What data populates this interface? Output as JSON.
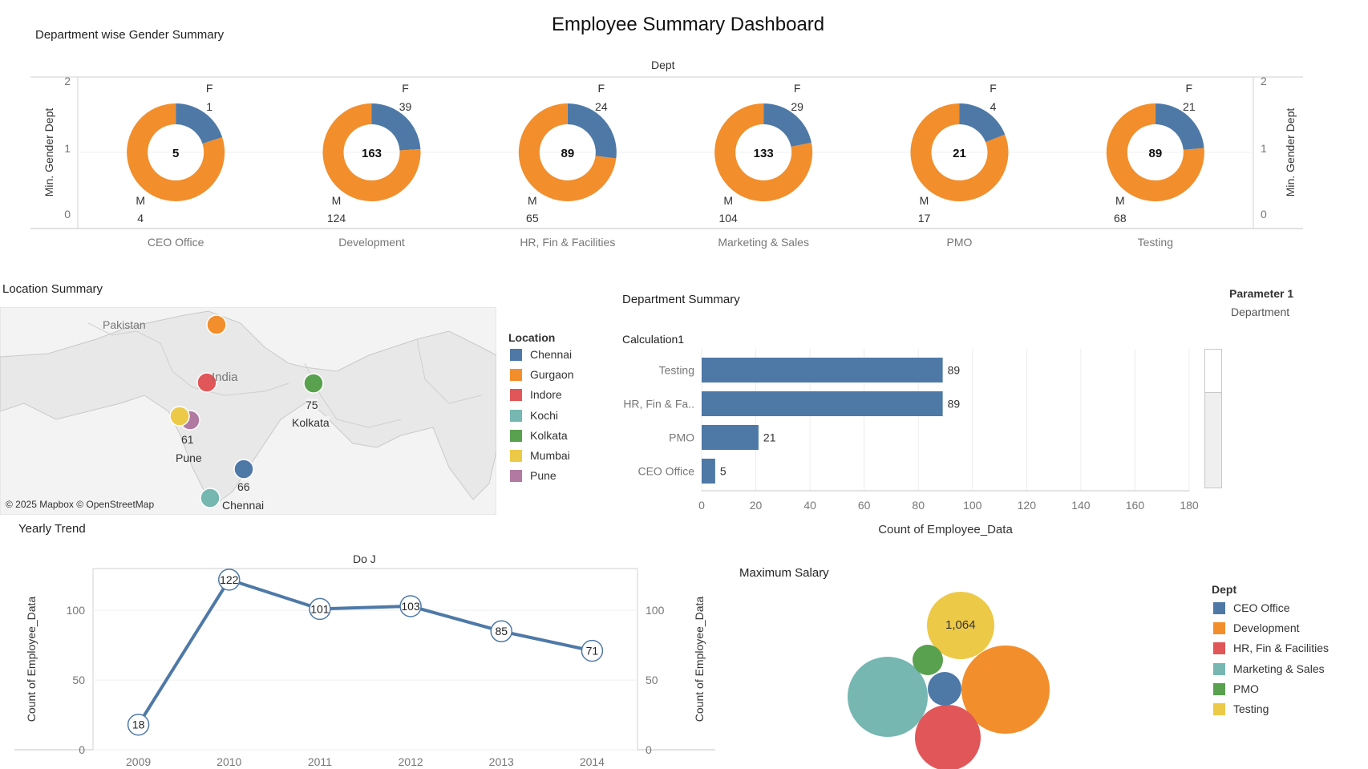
{
  "dashboard": {
    "title": "Employee Summary Dashboard"
  },
  "gender_summary": {
    "title": "Department wise Gender Summary",
    "top_label": "Dept",
    "y_label": "Min. Gender Dept",
    "y_ticks": [
      "0",
      "1",
      "2"
    ],
    "f_label": "F",
    "m_label": "M",
    "colors": {
      "F": "#4e79a7",
      "M": "#f28e2b"
    },
    "depts": [
      {
        "name": "CEO Office",
        "total": "5",
        "F": "1",
        "M": "4",
        "f": 1,
        "m": 4
      },
      {
        "name": "Development",
        "total": "163",
        "F": "39",
        "M": "124",
        "f": 39,
        "m": 124
      },
      {
        "name": "HR, Fin & Facilities",
        "total": "89",
        "F": "24",
        "M": "65",
        "f": 24,
        "m": 65
      },
      {
        "name": "Marketing & Sales",
        "total": "133",
        "F": "29",
        "M": "104",
        "f": 29,
        "m": 104
      },
      {
        "name": "PMO",
        "total": "21",
        "F": "4",
        "M": "17",
        "f": 4,
        "m": 17
      },
      {
        "name": "Testing",
        "total": "89",
        "F": "21",
        "M": "68",
        "f": 21,
        "m": 68
      }
    ]
  },
  "location": {
    "title": "Location Summary",
    "legend_title": "Location",
    "legend": [
      {
        "name": "Chennai",
        "color": "#4e79a7"
      },
      {
        "name": "Gurgaon",
        "color": "#f28e2b"
      },
      {
        "name": "Indore",
        "color": "#e15759"
      },
      {
        "name": "Kochi",
        "color": "#76b7b2"
      },
      {
        "name": "Kolkata",
        "color": "#59a14f"
      },
      {
        "name": "Mumbai",
        "color": "#edc948"
      },
      {
        "name": "Pune",
        "color": "#b07aa1"
      }
    ],
    "map_labels": {
      "pakistan": "Pakistan",
      "india": "India"
    },
    "city_labels": [
      {
        "value": "75",
        "name": "Kolkata"
      },
      {
        "value": "61",
        "name": "Pune"
      },
      {
        "value": "66",
        "name": "Chennai"
      }
    ],
    "attribution": "© 2025 Mapbox © OpenStreetMap"
  },
  "department_summary": {
    "title": "Department Summary",
    "parameter_label": "Parameter 1",
    "parameter_value": "Department",
    "calc_label": "Calculation1"
  },
  "yearly": {
    "title": "Yearly Trend",
    "top_label": "Do J"
  },
  "salary": {
    "title": "Maximum Salary",
    "legend_title": "Dept",
    "bubble_label": "1,064"
  },
  "chart_data": [
    {
      "type": "bar",
      "categories": [
        "Testing",
        "HR, Fin & Fa..",
        "PMO",
        "CEO Office"
      ],
      "values": [
        89,
        89,
        21,
        5
      ],
      "xlabel": "Count of Employee_Data",
      "xlim": [
        0,
        180
      ],
      "xticks": [
        0,
        20,
        40,
        60,
        80,
        100,
        120,
        140,
        160,
        180
      ],
      "color": "#4e79a7"
    },
    {
      "type": "line",
      "x": [
        "2009",
        "2010",
        "2011",
        "2012",
        "2013",
        "2014"
      ],
      "values": [
        18,
        122,
        101,
        103,
        85,
        71
      ],
      "ylabel": "Count of Employee_Data",
      "ylim": [
        0,
        130
      ],
      "yticks": [
        0,
        50,
        100
      ],
      "color": "#4e79a7"
    },
    {
      "type": "bubble",
      "categories": [
        "CEO Office",
        "Development",
        "HR, Fin & Facilities",
        "Marketing & Sales",
        "PMO",
        "Testing"
      ],
      "colors": [
        "#4e79a7",
        "#f28e2b",
        "#e15759",
        "#76b7b2",
        "#59a14f",
        "#edc948"
      ],
      "labeled_value": "1,064"
    }
  ]
}
